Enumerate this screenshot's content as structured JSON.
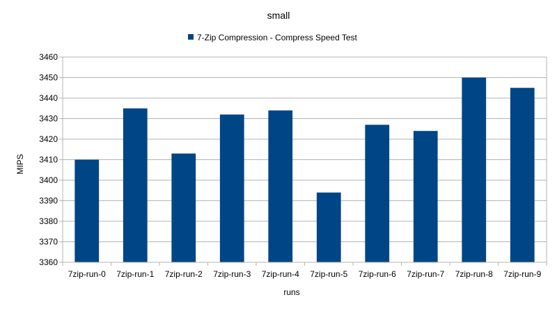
{
  "chart_data": {
    "type": "bar",
    "title": "small",
    "xlabel": "runs",
    "ylabel": "MIPS",
    "categories": [
      "7zip-run-0",
      "7zip-run-1",
      "7zip-run-2",
      "7zip-run-3",
      "7zip-run-4",
      "7zip-run-5",
      "7zip-run-6",
      "7zip-run-7",
      "7zip-run-8",
      "7zip-run-9"
    ],
    "series": [
      {
        "name": "7-Zip Compression - Compress Speed Test",
        "values": [
          3410,
          3435,
          3413,
          3432,
          3434,
          3394,
          3427,
          3424,
          3450,
          3445
        ]
      }
    ],
    "ylim": [
      3360,
      3460
    ],
    "yticks": [
      3360,
      3370,
      3380,
      3390,
      3400,
      3410,
      3420,
      3430,
      3440,
      3450,
      3460
    ],
    "grid": true,
    "legend_position": "top",
    "colors": {
      "bar": "#004586",
      "grid": "#b3b3b3"
    }
  }
}
